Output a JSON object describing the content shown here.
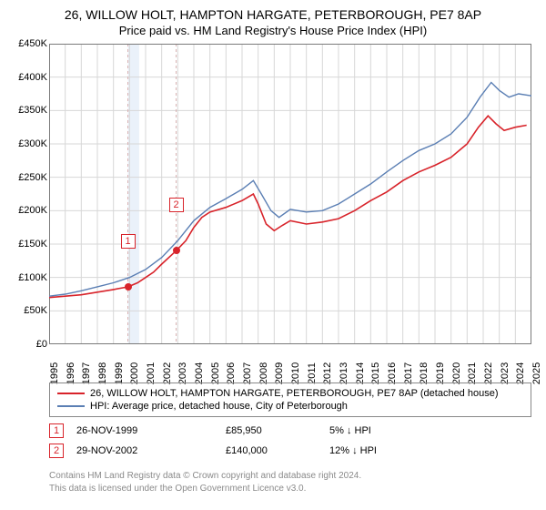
{
  "title_line1": "26, WILLOW HOLT, HAMPTON HARGATE, PETERBOROUGH, PE7 8AP",
  "title_line2": "Price paid vs. HM Land Registry's House Price Index (HPI)",
  "chart": {
    "type": "line",
    "background_color": "#ffffff",
    "grid_color": "#d7d7d7",
    "border_color": "#7a7a7a",
    "band_color": "#eaf1fa",
    "vdash_color": "#d8b0b0",
    "x_years": [
      "1995",
      "1996",
      "1997",
      "1998",
      "1999",
      "2000",
      "2001",
      "2002",
      "2003",
      "2004",
      "2005",
      "2006",
      "2007",
      "2008",
      "2009",
      "2010",
      "2011",
      "2012",
      "2013",
      "2014",
      "2015",
      "2016",
      "2017",
      "2018",
      "2019",
      "2020",
      "2021",
      "2022",
      "2023",
      "2024",
      "2025"
    ],
    "y_ticks": [
      0,
      50000,
      100000,
      150000,
      200000,
      250000,
      300000,
      350000,
      400000,
      450000
    ],
    "y_tick_labels": [
      "£0",
      "£50K",
      "£100K",
      "£150K",
      "£200K",
      "£250K",
      "£300K",
      "£350K",
      "£400K",
      "£450K"
    ],
    "ymax": 450000,
    "marker_band": {
      "start_year": 1999.9,
      "end_year": 2000.6
    },
    "vdash_years": [
      1999.9,
      2002.9
    ],
    "series": [
      {
        "name": "price_paid",
        "color": "#d8232a",
        "line_width": 1.6,
        "points": [
          [
            1995.0,
            70000
          ],
          [
            1996.0,
            72000
          ],
          [
            1997.0,
            74000
          ],
          [
            1998.0,
            78000
          ],
          [
            1999.0,
            82000
          ],
          [
            1999.9,
            85950
          ],
          [
            2000.5,
            92000
          ],
          [
            2001.0,
            100000
          ],
          [
            2001.5,
            108000
          ],
          [
            2002.0,
            120000
          ],
          [
            2002.9,
            140000
          ],
          [
            2003.5,
            155000
          ],
          [
            2004.0,
            175000
          ],
          [
            2004.5,
            190000
          ],
          [
            2005.0,
            198000
          ],
          [
            2006.0,
            205000
          ],
          [
            2007.0,
            215000
          ],
          [
            2007.7,
            225000
          ],
          [
            2008.0,
            210000
          ],
          [
            2008.5,
            180000
          ],
          [
            2009.0,
            170000
          ],
          [
            2009.5,
            178000
          ],
          [
            2010.0,
            185000
          ],
          [
            2011.0,
            180000
          ],
          [
            2012.0,
            183000
          ],
          [
            2013.0,
            188000
          ],
          [
            2014.0,
            200000
          ],
          [
            2015.0,
            215000
          ],
          [
            2016.0,
            228000
          ],
          [
            2017.0,
            245000
          ],
          [
            2018.0,
            258000
          ],
          [
            2019.0,
            268000
          ],
          [
            2020.0,
            280000
          ],
          [
            2021.0,
            300000
          ],
          [
            2021.7,
            325000
          ],
          [
            2022.3,
            342000
          ],
          [
            2022.8,
            330000
          ],
          [
            2023.3,
            320000
          ],
          [
            2024.0,
            325000
          ],
          [
            2024.7,
            328000
          ]
        ]
      },
      {
        "name": "hpi",
        "color": "#5b7fb4",
        "line_width": 1.4,
        "points": [
          [
            1995.0,
            72000
          ],
          [
            1996.0,
            75000
          ],
          [
            1997.0,
            80000
          ],
          [
            1998.0,
            86000
          ],
          [
            1999.0,
            92000
          ],
          [
            2000.0,
            100000
          ],
          [
            2001.0,
            112000
          ],
          [
            2002.0,
            130000
          ],
          [
            2003.0,
            155000
          ],
          [
            2004.0,
            185000
          ],
          [
            2005.0,
            205000
          ],
          [
            2006.0,
            218000
          ],
          [
            2007.0,
            232000
          ],
          [
            2007.7,
            245000
          ],
          [
            2008.2,
            225000
          ],
          [
            2008.8,
            200000
          ],
          [
            2009.3,
            190000
          ],
          [
            2010.0,
            202000
          ],
          [
            2011.0,
            198000
          ],
          [
            2012.0,
            200000
          ],
          [
            2013.0,
            210000
          ],
          [
            2014.0,
            225000
          ],
          [
            2015.0,
            240000
          ],
          [
            2016.0,
            258000
          ],
          [
            2017.0,
            275000
          ],
          [
            2018.0,
            290000
          ],
          [
            2019.0,
            300000
          ],
          [
            2020.0,
            315000
          ],
          [
            2021.0,
            340000
          ],
          [
            2021.8,
            370000
          ],
          [
            2022.5,
            392000
          ],
          [
            2023.0,
            380000
          ],
          [
            2023.6,
            370000
          ],
          [
            2024.2,
            375000
          ],
          [
            2025.0,
            372000
          ]
        ]
      }
    ],
    "sale_markers": [
      {
        "num": "1",
        "year": 1999.9,
        "price": 85950,
        "color": "#d8232a"
      },
      {
        "num": "2",
        "year": 2002.9,
        "price": 140000,
        "color": "#d8232a"
      }
    ],
    "marker_box_y_offset": -58
  },
  "legend": {
    "items": [
      {
        "color": "#d8232a",
        "label": "26, WILLOW HOLT, HAMPTON HARGATE, PETERBOROUGH, PE7 8AP (detached house)"
      },
      {
        "color": "#5b7fb4",
        "label": "HPI: Average price, detached house, City of Peterborough"
      }
    ]
  },
  "footnotes": [
    {
      "num": "1",
      "color": "#d8232a",
      "date": "26-NOV-1999",
      "price": "£85,950",
      "pct": "5%",
      "arrow": "↓",
      "suffix": "HPI"
    },
    {
      "num": "2",
      "color": "#d8232a",
      "date": "29-NOV-2002",
      "price": "£140,000",
      "pct": "12%",
      "arrow": "↓",
      "suffix": "HPI"
    }
  ],
  "attribution": {
    "line1": "Contains HM Land Registry data © Crown copyright and database right 2024.",
    "line2": "This data is licensed under the Open Government Licence v3.0."
  }
}
